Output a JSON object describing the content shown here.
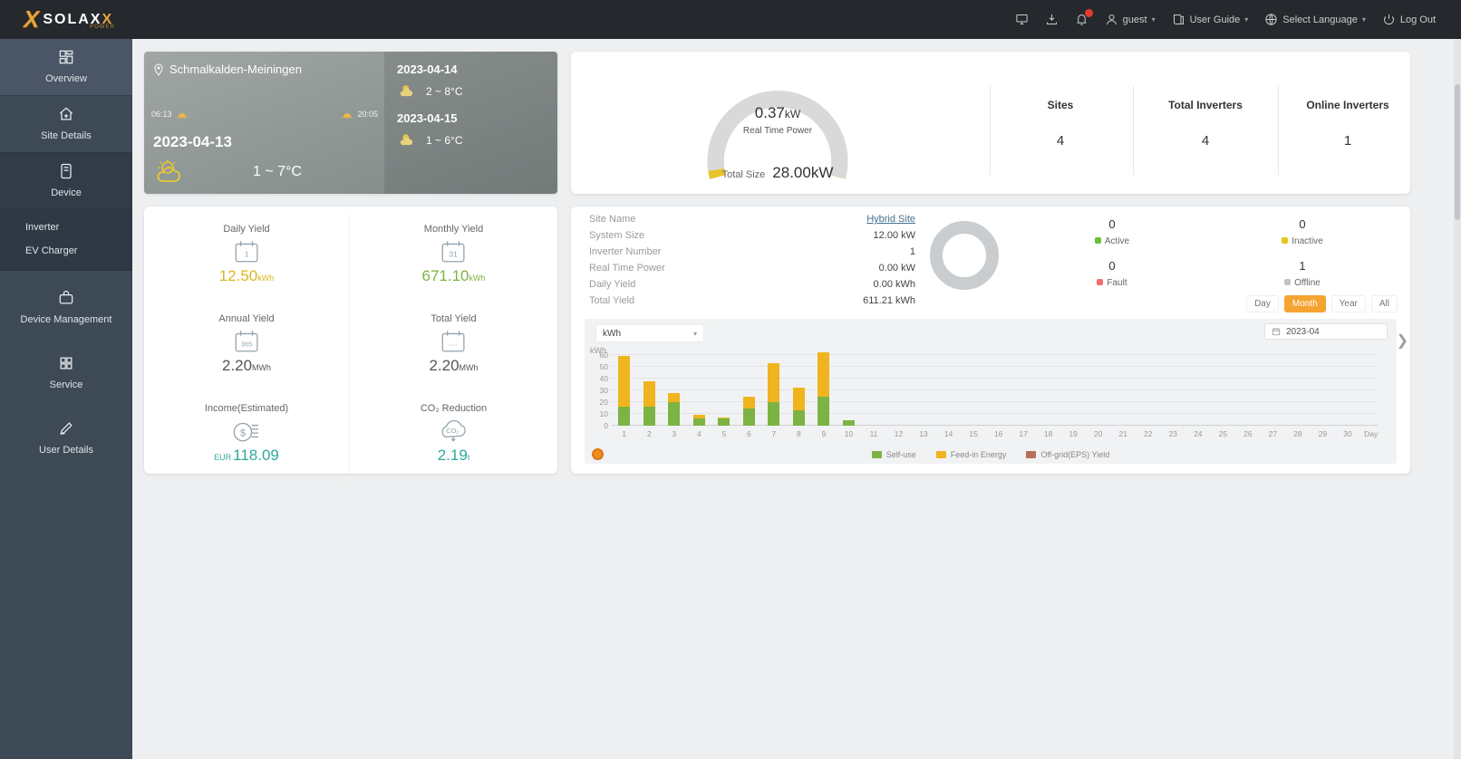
{
  "navbar": {
    "brand": "SOLAX",
    "brand_sub": "POWER",
    "user": "guest",
    "user_guide": "User Guide",
    "select_language": "Select Language",
    "log_out": "Log Out"
  },
  "sidebar": {
    "items": [
      {
        "label": "Overview"
      },
      {
        "label": "Site Details"
      },
      {
        "label": "Device"
      },
      {
        "label": "Inverter"
      },
      {
        "label": "EV Charger"
      },
      {
        "label": "Device Management"
      },
      {
        "label": "Service"
      },
      {
        "label": "User Details"
      }
    ]
  },
  "weather": {
    "location": "Schmalkalden-Meiningen",
    "sunrise": "06:13",
    "sunset": "20:05",
    "today": {
      "date": "2023-04-13",
      "temp": "1 ~ 7°C"
    },
    "forecast": [
      {
        "date": "2023-04-14",
        "temp": "2 ~ 8°C"
      },
      {
        "date": "2023-04-15",
        "temp": "1 ~ 6°C"
      }
    ]
  },
  "gauge": {
    "value": "0.37",
    "unit": "kW",
    "label": "Real Time Power",
    "total_label": "Total Size",
    "total_value": "28.00kW",
    "percent": 3.2
  },
  "summary": [
    {
      "label": "Sites",
      "value": "4"
    },
    {
      "label": "Total Inverters",
      "value": "4"
    },
    {
      "label": "Online Inverters",
      "value": "1"
    }
  ],
  "yields": [
    {
      "label": "Daily Yield",
      "value": "12.50",
      "unit": "kWh",
      "color": "#d9b81c"
    },
    {
      "label": "Monthly Yield",
      "value": "671.10",
      "unit": "kWh",
      "color": "#7cb342"
    },
    {
      "label": "Annual Yield",
      "value": "2.20",
      "unit": "MWh",
      "color": "#555555"
    },
    {
      "label": "Total Yield",
      "value": "2.20",
      "unit": "MWh",
      "color": "#555555"
    },
    {
      "label": "Income(Estimated)",
      "prefix": "EUR",
      "value": "118.09",
      "unit": "",
      "color": "#2fa79c"
    },
    {
      "label": "CO₂ Reduction",
      "value": "2.19",
      "unit": "t",
      "color": "#2fa79c"
    }
  ],
  "site_info": {
    "rows": [
      {
        "label": "Site Name",
        "value": "Hybrid Site"
      },
      {
        "label": "System Size",
        "value": "12.00 kW"
      },
      {
        "label": "Inverter Number",
        "value": "1"
      },
      {
        "label": "Real Time Power",
        "value": "0.00 kW"
      },
      {
        "label": "Daily Yield",
        "value": "0.00 kWh"
      },
      {
        "label": "Total Yield",
        "value": "611.21 kWh"
      }
    ],
    "status": [
      {
        "count": "0",
        "label": "Active",
        "color": "#67c23a"
      },
      {
        "count": "0",
        "label": "Inactive",
        "color": "#e6c619"
      },
      {
        "count": "0",
        "label": "Fault",
        "color": "#f56c6c"
      },
      {
        "count": "1",
        "label": "Offline",
        "color": "#c0c4c8"
      }
    ],
    "period_tabs": [
      {
        "label": "Day"
      },
      {
        "label": "Month"
      },
      {
        "label": "Year"
      },
      {
        "label": "All"
      }
    ],
    "active_tab": "Month"
  },
  "chart_data": {
    "type": "bar",
    "stacked": true,
    "unit_selector_value": "kWh",
    "date_picker_value": "2023-04",
    "x": [
      "1",
      "2",
      "3",
      "4",
      "5",
      "6",
      "7",
      "8",
      "9",
      "10",
      "11",
      "12",
      "13",
      "14",
      "15",
      "16",
      "17",
      "18",
      "19",
      "20",
      "21",
      "22",
      "23",
      "24",
      "25",
      "26",
      "27",
      "28",
      "29",
      "30"
    ],
    "xlabel": "Day",
    "ylabel": "kWh",
    "ylim": [
      0,
      60
    ],
    "yticks": [
      0,
      10,
      20,
      30,
      40,
      50,
      60
    ],
    "grid": true,
    "legend_position": "bottom",
    "series": [
      {
        "name": "Self-use",
        "color": "#7cb342",
        "values": [
          16,
          16,
          20,
          6,
          6,
          15,
          20,
          13,
          25,
          5,
          0,
          0,
          0,
          0,
          0,
          0,
          0,
          0,
          0,
          0,
          0,
          0,
          0,
          0,
          0,
          0,
          0,
          0,
          0,
          0
        ]
      },
      {
        "name": "Feed-in Energy",
        "color": "#f0b41e",
        "values": [
          43,
          22,
          8,
          3,
          1,
          10,
          33,
          19,
          37,
          0,
          0,
          0,
          0,
          0,
          0,
          0,
          0,
          0,
          0,
          0,
          0,
          0,
          0,
          0,
          0,
          0,
          0,
          0,
          0,
          0
        ]
      },
      {
        "name": "Off-grid(EPS) Yield",
        "color": "#b5715c",
        "values": [
          0,
          0,
          0,
          0,
          0,
          0,
          0,
          0,
          0,
          0,
          0,
          0,
          0,
          0,
          0,
          0,
          0,
          0,
          0,
          0,
          0,
          0,
          0,
          0,
          0,
          0,
          0,
          0,
          0,
          0
        ]
      }
    ]
  },
  "colors": {
    "accent_orange": "#f5a431",
    "navbar_bg": "#25282c",
    "sidebar_bg": "#3e4956",
    "donut_offline": "#c9cdd0",
    "gauge_track": "#d9d9d9",
    "gauge_fill": "#e9c428"
  }
}
